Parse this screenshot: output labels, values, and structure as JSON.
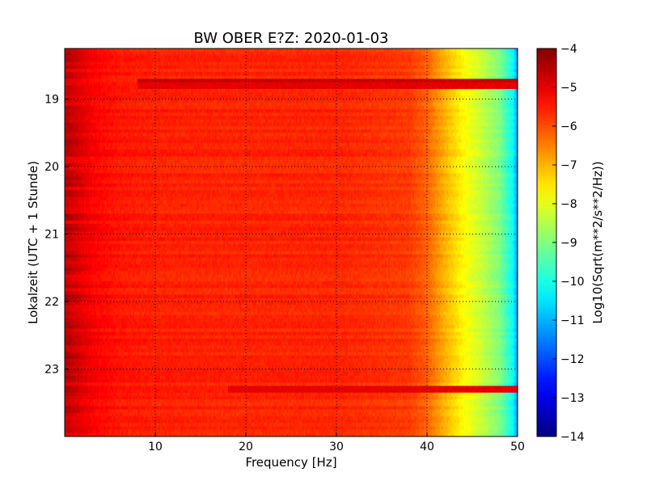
{
  "chart_data": {
    "type": "heatmap",
    "title": "BW OBER E?Z: 2020-01-03",
    "xlabel": "Frequency [Hz]",
    "ylabel": "Lokalzeit (UTC + 1 Stunde)",
    "xlim": [
      0,
      50
    ],
    "ylim": [
      24.0,
      18.25
    ],
    "x_ticks": [
      10,
      20,
      30,
      40,
      50
    ],
    "y_ticks": [
      19,
      20,
      21,
      22,
      23
    ],
    "grid": true,
    "colormap": "jet",
    "colorbar": {
      "label": "Log10(Sqrt(m**2/s**2/Hz))",
      "range": [
        -14,
        -4
      ],
      "ticks": [
        -4,
        -5,
        -6,
        -7,
        -8,
        -9,
        -10,
        -11,
        -12,
        -13,
        -14
      ]
    },
    "frequency_profile": {
      "frequency_hz": [
        0,
        1,
        2,
        3,
        4,
        6,
        10,
        20,
        30,
        38,
        40,
        42,
        44,
        46,
        48,
        49.5,
        50
      ],
      "value_log10": [
        -4.6,
        -4.8,
        -5.0,
        -5.2,
        -5.3,
        -5.45,
        -5.55,
        -5.6,
        -5.6,
        -5.8,
        -6.2,
        -7.0,
        -7.7,
        -8.3,
        -9.0,
        -10.2,
        -11.3
      ]
    },
    "strong_bands": [
      {
        "time": 18.7,
        "freq_range": [
          8,
          50
        ],
        "value_log10": -4.7
      },
      {
        "time": 18.78,
        "freq_range": [
          8,
          50
        ],
        "value_log10": -5.0
      },
      {
        "time": 23.28,
        "freq_range": [
          18,
          50
        ],
        "value_log10": -5.0
      }
    ]
  }
}
